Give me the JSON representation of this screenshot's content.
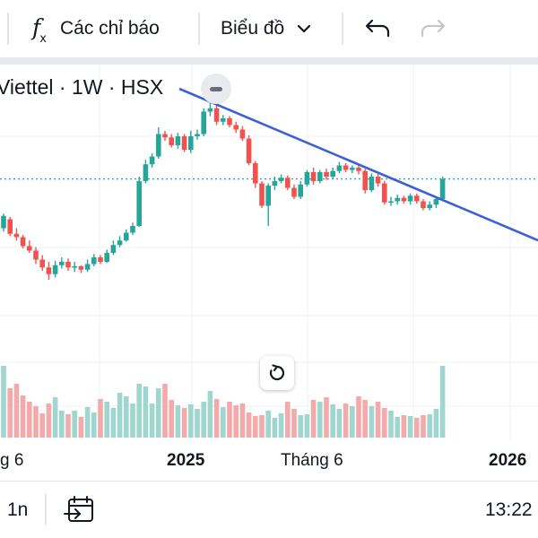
{
  "toolbar": {
    "indicators_label": "Các chỉ báo",
    "chart_type_label": "Biểu đồ",
    "icons": [
      "function-icon",
      "chevron-down-icon",
      "undo-icon",
      "redo-icon"
    ]
  },
  "legend": {
    "text": "Viettel · 1W · HSX"
  },
  "colors": {
    "up": "#26a69a",
    "down": "#ef5350",
    "volume_up": "#9fd6cf",
    "volume_down": "#f4a9aa",
    "trendline": "#3c5fdb",
    "price_line": "#26a69a",
    "grid": "#eef0f3"
  },
  "chart_data": {
    "type": "candlestick",
    "interval": "1W",
    "trendline": "descending",
    "x_tick_labels": [
      "g 6",
      "2025",
      "Tháng 6",
      "2026"
    ],
    "candles": [
      {
        "o": 6,
        "c": 17,
        "h": 19,
        "l": 3
      },
      {
        "o": 14,
        "c": 1,
        "h": 16,
        "l": -1
      },
      {
        "o": 1,
        "c": -2,
        "h": 6,
        "l": -5
      },
      {
        "o": -2,
        "c": -10,
        "h": 0,
        "l": -12
      },
      {
        "o": -10,
        "c": -14,
        "h": -5,
        "l": -16
      },
      {
        "o": -14,
        "c": -22,
        "h": -11,
        "l": -26
      },
      {
        "o": -22,
        "c": -29,
        "h": -18,
        "l": -32
      },
      {
        "o": -29,
        "c": -35,
        "h": -24,
        "l": -40
      },
      {
        "o": -35,
        "c": -27,
        "h": -23,
        "l": -38
      },
      {
        "o": -27,
        "c": -24,
        "h": -20,
        "l": -30
      },
      {
        "o": -24,
        "c": -29,
        "h": -21,
        "l": -32
      },
      {
        "o": -29,
        "c": -28,
        "h": -24,
        "l": -33
      },
      {
        "o": -28,
        "c": -31,
        "h": -27,
        "l": -34
      },
      {
        "o": -31,
        "c": -26,
        "h": -22,
        "l": -33
      },
      {
        "o": -26,
        "c": -20,
        "h": -17,
        "l": -28
      },
      {
        "o": -20,
        "c": -24,
        "h": -18,
        "l": -26
      },
      {
        "o": -24,
        "c": -16,
        "h": -13,
        "l": -25
      },
      {
        "o": -16,
        "c": -9,
        "h": -5,
        "l": -18
      },
      {
        "o": -9,
        "c": -5,
        "h": -1,
        "l": -11
      },
      {
        "o": -5,
        "c": 2,
        "h": 5,
        "l": -6
      },
      {
        "o": 2,
        "c": 8,
        "h": 11,
        "l": 0
      },
      {
        "o": 8,
        "c": 48,
        "h": 52,
        "l": 7
      },
      {
        "o": 48,
        "c": 63,
        "h": 67,
        "l": 46
      },
      {
        "o": 63,
        "c": 70,
        "h": 73,
        "l": 60
      },
      {
        "o": 70,
        "c": 90,
        "h": 96,
        "l": 68
      },
      {
        "o": 90,
        "c": 87,
        "h": 93,
        "l": 84
      },
      {
        "o": 87,
        "c": 80,
        "h": 90,
        "l": 78
      },
      {
        "o": 80,
        "c": 88,
        "h": 91,
        "l": 77
      },
      {
        "o": 88,
        "c": 76,
        "h": 90,
        "l": 74
      },
      {
        "o": 76,
        "c": 88,
        "h": 93,
        "l": 73
      },
      {
        "o": 88,
        "c": 90,
        "h": 94,
        "l": 85
      },
      {
        "o": 90,
        "c": 110,
        "h": 113,
        "l": 88
      },
      {
        "o": 110,
        "c": 113,
        "h": 118,
        "l": 106
      },
      {
        "o": 113,
        "c": 101,
        "h": 117,
        "l": 98
      },
      {
        "o": 101,
        "c": 104,
        "h": 107,
        "l": 98
      },
      {
        "o": 104,
        "c": 98,
        "h": 106,
        "l": 96
      },
      {
        "o": 98,
        "c": 94,
        "h": 101,
        "l": 91
      },
      {
        "o": 94,
        "c": 86,
        "h": 97,
        "l": 84
      },
      {
        "o": 86,
        "c": 64,
        "h": 89,
        "l": 62
      },
      {
        "o": 64,
        "c": 46,
        "h": 66,
        "l": 42
      },
      {
        "o": 46,
        "c": 26,
        "h": 48,
        "l": 24
      },
      {
        "o": 26,
        "c": 44,
        "h": 46,
        "l": 8
      },
      {
        "o": 44,
        "c": 48,
        "h": 52,
        "l": 40
      },
      {
        "o": 48,
        "c": 51,
        "h": 54,
        "l": 46
      },
      {
        "o": 51,
        "c": 42,
        "h": 53,
        "l": 40
      },
      {
        "o": 42,
        "c": 34,
        "h": 45,
        "l": 32
      },
      {
        "o": 34,
        "c": 45,
        "h": 48,
        "l": 32
      },
      {
        "o": 45,
        "c": 56,
        "h": 58,
        "l": 43
      },
      {
        "o": 56,
        "c": 48,
        "h": 60,
        "l": 45
      },
      {
        "o": 48,
        "c": 56,
        "h": 58,
        "l": 46
      },
      {
        "o": 56,
        "c": 52,
        "h": 59,
        "l": 49
      },
      {
        "o": 52,
        "c": 57,
        "h": 60,
        "l": 50
      },
      {
        "o": 57,
        "c": 62,
        "h": 65,
        "l": 55
      },
      {
        "o": 62,
        "c": 58,
        "h": 64,
        "l": 56
      },
      {
        "o": 58,
        "c": 60,
        "h": 62,
        "l": 55
      },
      {
        "o": 60,
        "c": 57,
        "h": 62,
        "l": 54
      },
      {
        "o": 57,
        "c": 40,
        "h": 59,
        "l": 37
      },
      {
        "o": 40,
        "c": 52,
        "h": 55,
        "l": 38
      },
      {
        "o": 52,
        "c": 46,
        "h": 55,
        "l": 43
      },
      {
        "o": 46,
        "c": 29,
        "h": 48,
        "l": 27
      },
      {
        "o": 29,
        "c": 30,
        "h": 34,
        "l": 26
      },
      {
        "o": 30,
        "c": 33,
        "h": 36,
        "l": 27
      },
      {
        "o": 33,
        "c": 30,
        "h": 35,
        "l": 28
      },
      {
        "o": 30,
        "c": 35,
        "h": 37,
        "l": 27
      },
      {
        "o": 35,
        "c": 30,
        "h": 37,
        "l": 28
      },
      {
        "o": 30,
        "c": 24,
        "h": 32,
        "l": 22
      },
      {
        "o": 24,
        "c": 27,
        "h": 30,
        "l": 22
      },
      {
        "o": 27,
        "c": 32,
        "h": 34,
        "l": 24
      },
      {
        "o": 32,
        "c": 50,
        "h": 52,
        "l": 30
      }
    ],
    "volumes": [
      80,
      55,
      60,
      47,
      40,
      35,
      27,
      38,
      45,
      30,
      26,
      30,
      23,
      34,
      28,
      43,
      40,
      33,
      50,
      46,
      38,
      60,
      57,
      38,
      55,
      60,
      42,
      36,
      33,
      37,
      32,
      40,
      52,
      43,
      34,
      40,
      36,
      38,
      28,
      24,
      25,
      30,
      22,
      27,
      40,
      32,
      25,
      26,
      42,
      40,
      45,
      37,
      32,
      38,
      35,
      46,
      42,
      35,
      40,
      33,
      30,
      23,
      25,
      24,
      22,
      25,
      26,
      32,
      80
    ]
  },
  "reset_button": {
    "icon": "reset-icon"
  },
  "footer": {
    "interval_label": "1n",
    "time_label": "13:22",
    "icons": [
      "goto-date-icon"
    ]
  }
}
